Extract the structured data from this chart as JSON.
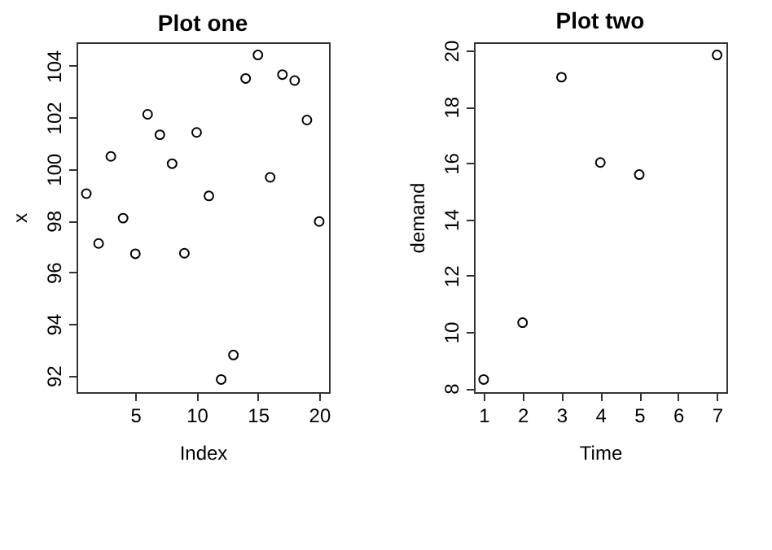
{
  "chart_data": [
    {
      "type": "scatter",
      "title": "Plot one",
      "xlabel": "Index",
      "ylabel": "x",
      "x": [
        1,
        2,
        3,
        4,
        5,
        6,
        7,
        8,
        9,
        10,
        11,
        12,
        13,
        14,
        15,
        16,
        17,
        18,
        19,
        20
      ],
      "values": [
        99.05,
        97.12,
        100.49,
        98.1,
        96.72,
        102.12,
        101.33,
        100.21,
        96.74,
        101.42,
        98.96,
        91.85,
        92.8,
        103.51,
        104.42,
        99.68,
        103.66,
        103.43,
        101.9,
        97.97
      ],
      "color": "#000000",
      "marker": "circle",
      "grid": false,
      "xlim": [
        0.2,
        20.8
      ],
      "ylim": [
        91.36,
        104.91
      ],
      "xticks": [
        5,
        10,
        15,
        20
      ],
      "yticks": [
        92,
        94,
        96,
        98,
        100,
        102,
        104
      ]
    },
    {
      "type": "scatter",
      "title": "Plot two",
      "xlabel": "Time",
      "ylabel": "demand",
      "x": [
        1,
        2,
        3,
        4,
        5,
        7
      ],
      "values": [
        8.31,
        10.33,
        19.05,
        16.02,
        15.59,
        19.84
      ],
      "color": "#000000",
      "marker": "circle",
      "grid": false,
      "xlim": [
        0.75,
        7.24
      ],
      "ylim": [
        7.86,
        20.29
      ],
      "xticks": [
        1,
        2,
        3,
        4,
        5,
        6,
        7
      ],
      "yticks": [
        8,
        10,
        12,
        14,
        16,
        18,
        20
      ]
    }
  ]
}
